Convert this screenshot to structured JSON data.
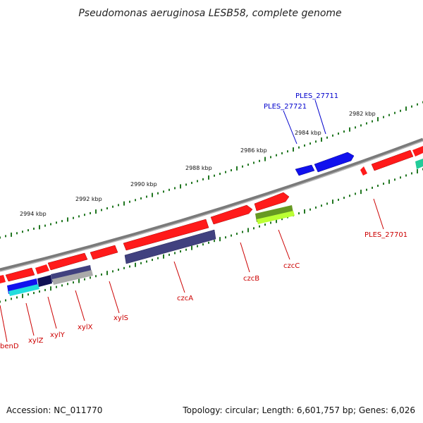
{
  "title": "Pseudomonas aeruginosa LESB58, complete genome",
  "footer": {
    "accession": "Accession: NC_011770",
    "summary": "Topology: circular; Length: 6,601,757 bp; Genes: 6,026"
  },
  "ticks": [
    "2982 kbp",
    "2984 kbp",
    "2986 kbp",
    "2988 kbp",
    "2990 kbp",
    "2992 kbp",
    "2994 kbp"
  ],
  "genes": {
    "ples27711": "PLES_27711",
    "ples27721": "PLES_27721",
    "ples27701": "PLES_27701",
    "czcC": "czcC",
    "czcB": "czcB",
    "czcA": "czcA",
    "xylS": "xylS",
    "xylX": "xylX",
    "xylY": "xylY",
    "xylZ": "xylZ",
    "benD": "benD"
  },
  "colors": {
    "forward_gene": "#ff1a1a",
    "reverse_gene_dark": "#41417f",
    "blue_gene": "#1111ee",
    "cyan_gene": "#22dddd",
    "green_gene": "#669922",
    "lime_gene": "#bbff33",
    "teal_gene": "#22cc99",
    "label_red": "#cc0000",
    "label_blue": "#0000cc",
    "backbone": "#808080",
    "tick": "#227722"
  }
}
